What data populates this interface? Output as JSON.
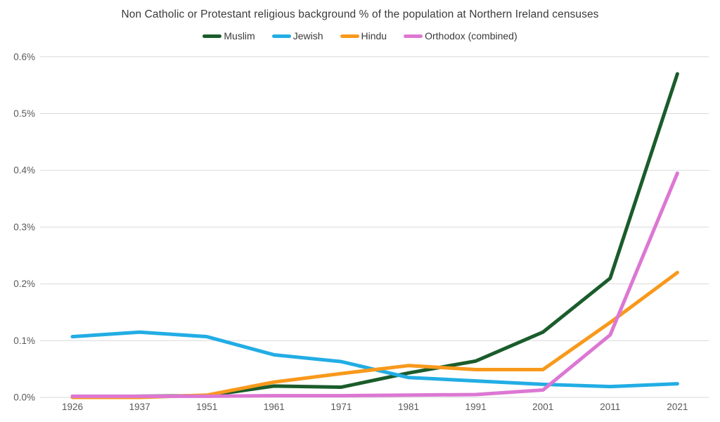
{
  "title": "Non Catholic or Protestant religious background % of the population at Northern Ireland censuses",
  "colors": {
    "background": "#ffffff",
    "title_text": "#3a3a3a",
    "axis_text": "#595959",
    "gridline": "#d9d9d9"
  },
  "chart_data": {
    "type": "line",
    "title": "Non Catholic or Protestant religious background % of the population at Northern Ireland censuses",
    "xlabel": "",
    "ylabel": "",
    "unit": "%",
    "grid": true,
    "legend_position": "top-center",
    "categories": [
      "1926",
      "1937",
      "1951",
      "1961",
      "1971",
      "1981",
      "1991",
      "2001",
      "2011",
      "2021"
    ],
    "ylim": [
      0.0,
      0.6
    ],
    "ytick_step": 0.1,
    "ytick_labels": [
      "0.0%",
      "0.1%",
      "0.2%",
      "0.3%",
      "0.4%",
      "0.5%",
      "0.6%"
    ],
    "series": [
      {
        "name": "Muslim",
        "color": "#1a5c2b",
        "values": [
          0.001,
          0.002,
          0.003,
          0.02,
          0.018,
          0.043,
          0.064,
          0.115,
          0.21,
          0.57
        ]
      },
      {
        "name": "Jewish",
        "color": "#22ade4",
        "values": [
          0.107,
          0.115,
          0.107,
          0.075,
          0.063,
          0.035,
          0.029,
          0.023,
          0.019,
          0.024
        ]
      },
      {
        "name": "Hindu",
        "color": "#f8991c",
        "values": [
          0.0,
          0.0,
          0.004,
          0.027,
          0.042,
          0.056,
          0.049,
          0.049,
          0.132,
          0.22
        ]
      },
      {
        "name": "Orthodox (combined)",
        "color": "#dc77d3",
        "values": [
          0.002,
          0.002,
          0.002,
          0.003,
          0.003,
          0.004,
          0.005,
          0.013,
          0.11,
          0.395
        ]
      }
    ]
  }
}
